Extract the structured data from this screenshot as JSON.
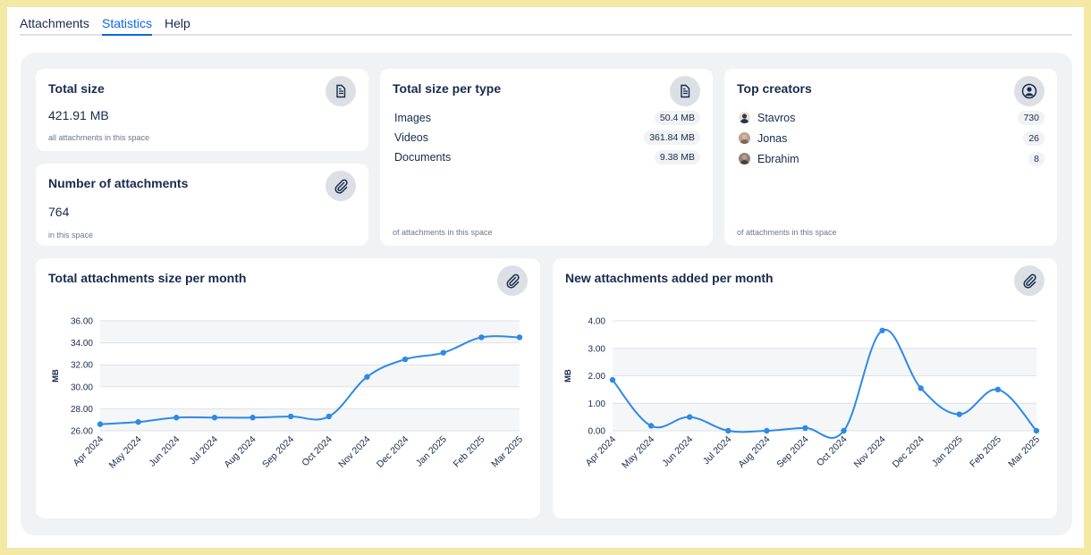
{
  "tabs": [
    {
      "label": "Attachments",
      "active": false
    },
    {
      "label": "Statistics",
      "active": true
    },
    {
      "label": "Help",
      "active": false
    }
  ],
  "total_size": {
    "title": "Total size",
    "value": "421.91 MB",
    "note": "all attachments in this space",
    "icon": "document-icon"
  },
  "num_attachments": {
    "title": "Number of attachments",
    "value": "764",
    "note": "in this space",
    "icon": "paperclip-icon"
  },
  "size_per_type": {
    "title": "Total size per type",
    "items": [
      {
        "label": "Images",
        "value": "50.4 MB"
      },
      {
        "label": "Videos",
        "value": "361.84 MB"
      },
      {
        "label": "Documents",
        "value": "9.38 MB"
      }
    ],
    "note": "of attachments in this space",
    "icon": "document-icon"
  },
  "top_creators": {
    "title": "Top creators",
    "items": [
      {
        "name": "Stavros",
        "count": "730"
      },
      {
        "name": "Jonas",
        "count": "26"
      },
      {
        "name": "Ebrahim",
        "count": "8"
      }
    ],
    "note": "of attachments in this space",
    "icon": "user-icon"
  },
  "colors": {
    "accent": "#2d8ae6",
    "active_tab": "#0c66e4"
  },
  "chart_data": [
    {
      "type": "line",
      "title": "Total attachments size per month",
      "ylabel": "MB",
      "xlabel": "",
      "ylim": [
        26,
        36
      ],
      "yticks": [
        "26.00",
        "28.00",
        "30.00",
        "32.00",
        "34.00",
        "36.00"
      ],
      "categories": [
        "Apr 2024",
        "May 2024",
        "Jun 2024",
        "Jul 2024",
        "Aug 2024",
        "Sep 2024",
        "Oct 2024",
        "Nov 2024",
        "Dec 2024",
        "Jan 2025",
        "Feb 2025",
        "Mar 2025"
      ],
      "values": [
        26.6,
        26.8,
        27.2,
        27.2,
        27.2,
        27.3,
        27.3,
        30.9,
        32.5,
        33.1,
        34.5,
        34.5
      ]
    },
    {
      "type": "line",
      "title": "New attachments added per month",
      "ylabel": "MB",
      "xlabel": "",
      "ylim": [
        0,
        4
      ],
      "yticks": [
        "0.00",
        "1.00",
        "2.00",
        "3.00",
        "4.00"
      ],
      "categories": [
        "Apr 2024",
        "May 2024",
        "Jun 2024",
        "Jul 2024",
        "Aug 2024",
        "Sep 2024",
        "Oct 2024",
        "Nov 2024",
        "Dec 2024",
        "Jan 2025",
        "Feb 2025",
        "Mar 2025"
      ],
      "values": [
        1.85,
        0.18,
        0.5,
        0.0,
        0.0,
        0.1,
        0.0,
        3.65,
        1.55,
        0.6,
        1.5,
        0.0
      ]
    }
  ]
}
